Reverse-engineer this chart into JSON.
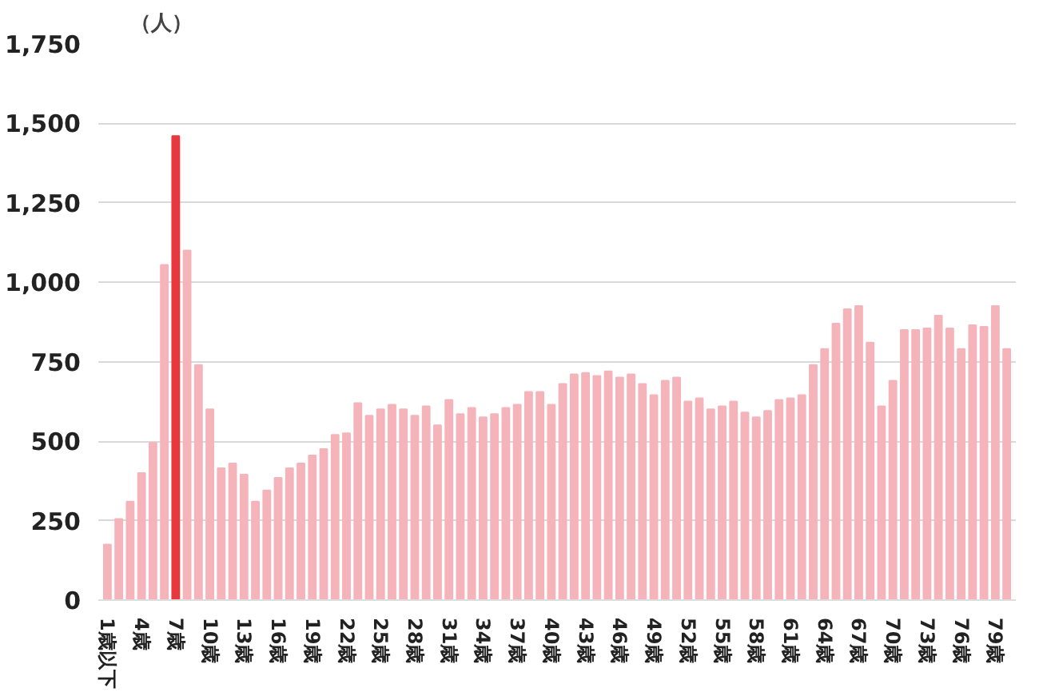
{
  "chart_data": {
    "type": "bar",
    "ylabel": "（人）",
    "categories": [
      "1歳以下",
      null,
      null,
      "4歳",
      null,
      null,
      "7歳",
      null,
      null,
      "10歳",
      null,
      null,
      "13歳",
      null,
      null,
      "16歳",
      null,
      null,
      "19歳",
      null,
      null,
      "22歳",
      null,
      null,
      "25歳",
      null,
      null,
      "28歳",
      null,
      null,
      "31歳",
      null,
      null,
      "34歳",
      null,
      null,
      "37歳",
      null,
      null,
      "40歳",
      null,
      null,
      "43歳",
      null,
      null,
      "46歳",
      null,
      null,
      "49歳",
      null,
      null,
      "52歳",
      null,
      null,
      "55歳",
      null,
      null,
      "58歳",
      null,
      null,
      "61歳",
      null,
      null,
      "64歳",
      null,
      null,
      "67歳",
      null,
      null,
      "70歳",
      null,
      null,
      "73歳",
      null,
      null,
      "76歳",
      null,
      null,
      "79歳",
      null
    ],
    "values": [
      175,
      255,
      310,
      400,
      495,
      1055,
      1460,
      1100,
      740,
      600,
      415,
      430,
      395,
      310,
      345,
      385,
      415,
      430,
      455,
      475,
      520,
      525,
      620,
      580,
      600,
      615,
      600,
      580,
      610,
      550,
      630,
      585,
      605,
      575,
      585,
      605,
      615,
      655,
      655,
      615,
      680,
      710,
      715,
      705,
      720,
      700,
      710,
      680,
      645,
      690,
      700,
      625,
      635,
      600,
      610,
      625,
      590,
      575,
      595,
      630,
      635,
      645,
      740,
      790,
      870,
      915,
      925,
      810,
      610,
      690,
      850,
      850,
      855,
      895,
      855,
      790,
      865,
      860,
      925,
      790
    ],
    "colors": [
      "#f5b3ba",
      "#f5b3ba",
      "#f5b3ba",
      "#f5b3ba",
      "#f5b3ba",
      "#f5b3ba",
      "#e8383f",
      "#f5b3ba",
      "#f5b3ba",
      "#f5b3ba",
      "#f5b3ba",
      "#f5b3ba",
      "#f5b3ba",
      "#f5b3ba",
      "#f5b3ba",
      "#f5b3ba",
      "#f5b3ba",
      "#f5b3ba",
      "#f5b3ba",
      "#f5b3ba",
      "#f5b3ba",
      "#f5b3ba",
      "#f5b3ba",
      "#f5b3ba",
      "#f5b3ba",
      "#f5b3ba",
      "#f5b3ba",
      "#f5b3ba",
      "#f5b3ba",
      "#f5b3ba",
      "#f5b3ba",
      "#f5b3ba",
      "#f5b3ba",
      "#f5b3ba",
      "#f5b3ba",
      "#f5b3ba",
      "#f5b3ba",
      "#f5b3ba",
      "#f5b3ba",
      "#f5b3ba",
      "#f5b3ba",
      "#f5b3ba",
      "#f5b3ba",
      "#f5b3ba",
      "#f5b3ba",
      "#f5b3ba",
      "#f5b3ba",
      "#f5b3ba",
      "#f5b3ba",
      "#f5b3ba",
      "#f5b3ba",
      "#f5b3ba",
      "#f5b3ba",
      "#f5b3ba",
      "#f5b3ba",
      "#f5b3ba",
      "#f5b3ba",
      "#f5b3ba",
      "#f5b3ba",
      "#f5b3ba",
      "#f5b3ba",
      "#f5b3ba",
      "#f5b3ba",
      "#f5b3ba",
      "#f5b3ba",
      "#f5b3ba",
      "#f5b3ba",
      "#f5b3ba",
      "#f5b3ba",
      "#f5b3ba",
      "#f5b3ba",
      "#f5b3ba",
      "#f5b3ba",
      "#f5b3ba",
      "#f5b3ba",
      "#f5b3ba",
      "#f5b3ba",
      "#f5b3ba",
      "#f5b3ba",
      "#f5b3ba"
    ],
    "ylim": [
      0,
      1750
    ],
    "yticks": [
      0,
      {
        "value": 250,
        "label": "250"
      },
      {
        "value": 500,
        "label": "500"
      },
      {
        "value": 750,
        "label": "750"
      },
      {
        "value": 1000,
        "label": "1,000"
      },
      {
        "value": 1250,
        "label": "1,250"
      },
      {
        "value": 1500,
        "label": "1,500"
      },
      {
        "value": 1750,
        "label": "1,750"
      }
    ],
    "grid": "y"
  }
}
